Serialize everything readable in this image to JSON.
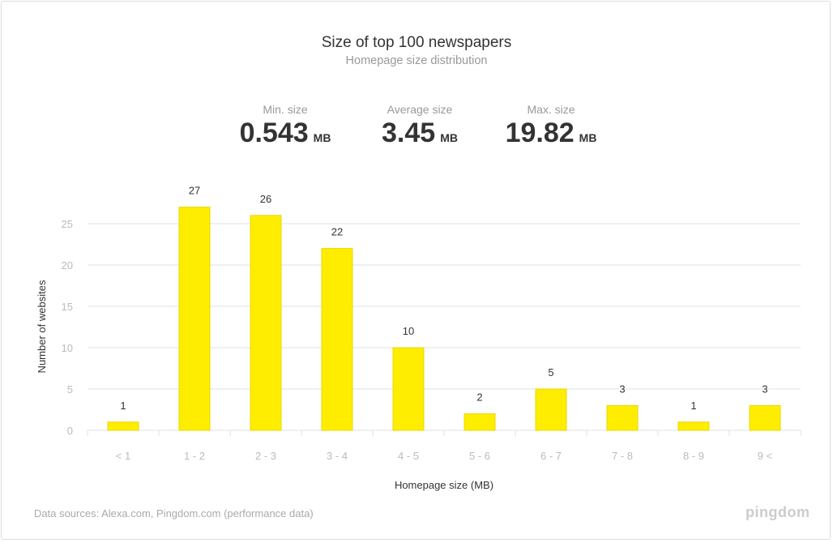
{
  "header": {
    "title": "Size of top 100 newspapers",
    "subtitle": "Homepage size distribution"
  },
  "stats": [
    {
      "label": "Min. size",
      "value": "0.543",
      "unit": "MB"
    },
    {
      "label": "Average size",
      "value": "3.45",
      "unit": "MB"
    },
    {
      "label": "Max. size",
      "value": "19.82",
      "unit": "MB"
    }
  ],
  "footer": {
    "sources": "Data sources: Alexa.com, Pingdom.com (performance data)",
    "logo": "pingdom"
  },
  "chart_data": {
    "type": "bar",
    "title": "Size of top 100 newspapers",
    "subtitle": "Homepage size distribution",
    "xlabel": "Homepage size (MB)",
    "ylabel": "Number of  websites",
    "categories": [
      "< 1",
      "1 - 2",
      "2 - 3",
      "3 - 4",
      "4 - 5",
      "5 - 6",
      "6 - 7",
      "7 - 8",
      "8 - 9",
      "9 <"
    ],
    "values": [
      1,
      27,
      26,
      22,
      10,
      2,
      5,
      3,
      1,
      3
    ],
    "yticks": [
      0,
      5,
      10,
      15,
      20,
      25
    ],
    "ylim": [
      0,
      27
    ],
    "grid": true,
    "bar_color": "#ffed00"
  }
}
